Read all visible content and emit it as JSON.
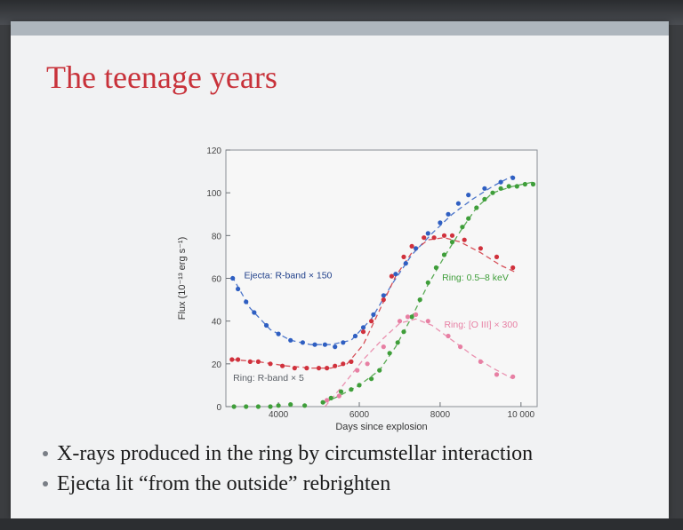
{
  "slide": {
    "title": "The teenage years",
    "bullets": [
      "X-rays produced in the ring by circumstellar interaction",
      "Ejecta lit “from the outside” rebrighten"
    ]
  },
  "colors": {
    "title": "#c8323a",
    "ejecta": "#2f5fc2",
    "ring_r": "#d0313c",
    "ring_x": "#3f9e3a",
    "ring_oiii": "#e77fa3"
  },
  "chart_data": {
    "type": "scatter",
    "xlabel": "Days since explosion",
    "ylabel": "Flux (10⁻¹³ erg s⁻¹)",
    "xlim": [
      2700,
      10400
    ],
    "ylim": [
      0,
      120
    ],
    "xticks": [
      4000,
      6000,
      8000,
      10000
    ],
    "xtick_labels": [
      "4000",
      "6000",
      "8000",
      "10 000"
    ],
    "yticks": [
      0,
      20,
      40,
      60,
      80,
      100,
      120
    ],
    "ytick_labels": [
      "0",
      "20",
      "40",
      "60",
      "80",
      "100",
      "120"
    ],
    "grid": false,
    "series": [
      {
        "name": "Ejecta: R-band × 150",
        "color": "#2f5fc2",
        "points": [
          [
            2870,
            60
          ],
          [
            3000,
            55
          ],
          [
            3200,
            49
          ],
          [
            3400,
            44
          ],
          [
            3700,
            38
          ],
          [
            4000,
            34
          ],
          [
            4300,
            31
          ],
          [
            4600,
            30
          ],
          [
            4900,
            29
          ],
          [
            5150,
            29
          ],
          [
            5400,
            28
          ],
          [
            5600,
            30
          ],
          [
            5900,
            33
          ],
          [
            6100,
            37
          ],
          [
            6350,
            43
          ],
          [
            6600,
            52
          ],
          [
            6900,
            62
          ],
          [
            7150,
            67
          ],
          [
            7400,
            74
          ],
          [
            7700,
            81
          ],
          [
            8000,
            86
          ],
          [
            8200,
            90
          ],
          [
            8450,
            95
          ],
          [
            8700,
            99
          ],
          [
            9100,
            102
          ],
          [
            9500,
            105
          ],
          [
            9800,
            107
          ]
        ]
      },
      {
        "name": "Ring: R-band × 5",
        "color": "#d0313c",
        "points": [
          [
            2850,
            22
          ],
          [
            3000,
            22
          ],
          [
            3300,
            21
          ],
          [
            3500,
            21
          ],
          [
            3800,
            20
          ],
          [
            4100,
            19
          ],
          [
            4400,
            18
          ],
          [
            4700,
            18
          ],
          [
            5000,
            18
          ],
          [
            5200,
            18
          ],
          [
            5400,
            19
          ],
          [
            5600,
            20
          ],
          [
            5800,
            21
          ],
          [
            6100,
            35
          ],
          [
            6300,
            40
          ],
          [
            6600,
            50
          ],
          [
            6800,
            61
          ],
          [
            7100,
            70
          ],
          [
            7300,
            75
          ],
          [
            7600,
            79
          ],
          [
            7850,
            79
          ],
          [
            8100,
            80
          ],
          [
            8300,
            80
          ],
          [
            8600,
            78
          ],
          [
            9000,
            74
          ],
          [
            9400,
            70
          ],
          [
            9800,
            65
          ]
        ]
      },
      {
        "name": "Ring: 0.5–8 keV",
        "color": "#3f9e3a",
        "points": [
          [
            2900,
            0
          ],
          [
            3200,
            0
          ],
          [
            3500,
            0
          ],
          [
            3800,
            0
          ],
          [
            4000,
            0.5
          ],
          [
            4300,
            1
          ],
          [
            4650,
            0.5
          ],
          [
            5100,
            2
          ],
          [
            5300,
            4
          ],
          [
            5550,
            7
          ],
          [
            5800,
            8
          ],
          [
            6000,
            10
          ],
          [
            6300,
            13
          ],
          [
            6500,
            17
          ],
          [
            6750,
            25
          ],
          [
            6950,
            30
          ],
          [
            7100,
            35
          ],
          [
            7300,
            42
          ],
          [
            7500,
            50
          ],
          [
            7700,
            58
          ],
          [
            7900,
            65
          ],
          [
            8100,
            71
          ],
          [
            8300,
            77
          ],
          [
            8550,
            84
          ],
          [
            8700,
            88
          ],
          [
            8900,
            93
          ],
          [
            9100,
            97
          ],
          [
            9300,
            100
          ],
          [
            9500,
            102
          ],
          [
            9700,
            103
          ],
          [
            9900,
            103
          ],
          [
            10100,
            104
          ],
          [
            10300,
            104
          ]
        ]
      },
      {
        "name": "Ring: [O III] × 300",
        "color": "#e77fa3",
        "points": [
          [
            5200,
            3
          ],
          [
            5500,
            5
          ],
          [
            5950,
            17
          ],
          [
            6200,
            20
          ],
          [
            6600,
            28
          ],
          [
            7000,
            40
          ],
          [
            7200,
            42
          ],
          [
            7400,
            43
          ],
          [
            7700,
            40
          ],
          [
            8200,
            33
          ],
          [
            8500,
            28
          ],
          [
            9000,
            21
          ],
          [
            9400,
            15
          ],
          [
            9800,
            14
          ]
        ]
      }
    ],
    "fits": [
      {
        "series": "Ejecta: R-band × 150",
        "color": "#2f5fc2",
        "points": [
          [
            2850,
            61
          ],
          [
            3300,
            46
          ],
          [
            3800,
            36
          ],
          [
            4300,
            31
          ],
          [
            4800,
            29
          ],
          [
            5300,
            29
          ],
          [
            5800,
            31
          ],
          [
            6300,
            41
          ],
          [
            6800,
            57
          ],
          [
            7300,
            71
          ],
          [
            7800,
            81
          ],
          [
            8300,
            90
          ],
          [
            8800,
            97
          ],
          [
            9300,
            103
          ],
          [
            9800,
            108
          ]
        ]
      },
      {
        "series": "Ring: R-band × 5",
        "color": "#d0313c",
        "points": [
          [
            2850,
            22
          ],
          [
            3500,
            21
          ],
          [
            4200,
            19
          ],
          [
            4800,
            18
          ],
          [
            5300,
            18
          ],
          [
            5700,
            20
          ],
          [
            6100,
            29
          ],
          [
            6500,
            45
          ],
          [
            6900,
            61
          ],
          [
            7300,
            72
          ],
          [
            7700,
            78
          ],
          [
            8100,
            79
          ],
          [
            8500,
            77
          ],
          [
            9000,
            72
          ],
          [
            9500,
            66
          ],
          [
            9850,
            63
          ]
        ]
      },
      {
        "series": "Ring: 0.5–8 keV",
        "color": "#3f9e3a",
        "points": [
          [
            5150,
            2
          ],
          [
            5500,
            5
          ],
          [
            6000,
            10
          ],
          [
            6500,
            17
          ],
          [
            6900,
            28
          ],
          [
            7300,
            42
          ],
          [
            7700,
            57
          ],
          [
            8100,
            70
          ],
          [
            8500,
            82
          ],
          [
            8900,
            93
          ],
          [
            9300,
            100
          ],
          [
            9800,
            103
          ],
          [
            10300,
            105
          ]
        ]
      },
      {
        "series": "Ring: [O III] × 300",
        "color": "#e77fa3",
        "points": [
          [
            5150,
            0
          ],
          [
            5600,
            10
          ],
          [
            6100,
            22
          ],
          [
            6600,
            32
          ],
          [
            7000,
            39
          ],
          [
            7400,
            41
          ],
          [
            7800,
            38
          ],
          [
            8300,
            31
          ],
          [
            8800,
            24
          ],
          [
            9300,
            18
          ],
          [
            9800,
            13
          ]
        ]
      }
    ],
    "annotations": [
      {
        "text": "Ejecta: R-band × 150",
        "color": "#1f3f8a",
        "x": 3150,
        "y": 60
      },
      {
        "text": "Ring: 0.5–8 keV",
        "color": "#3f9e3a",
        "x": 8050,
        "y": 59
      },
      {
        "text": "Ring: [O III] × 300",
        "color": "#e77fa3",
        "x": 8100,
        "y": 37
      },
      {
        "text": "Ring: R-band × 5",
        "color": "#5a5f66",
        "x": 2880,
        "y": 12
      }
    ]
  }
}
